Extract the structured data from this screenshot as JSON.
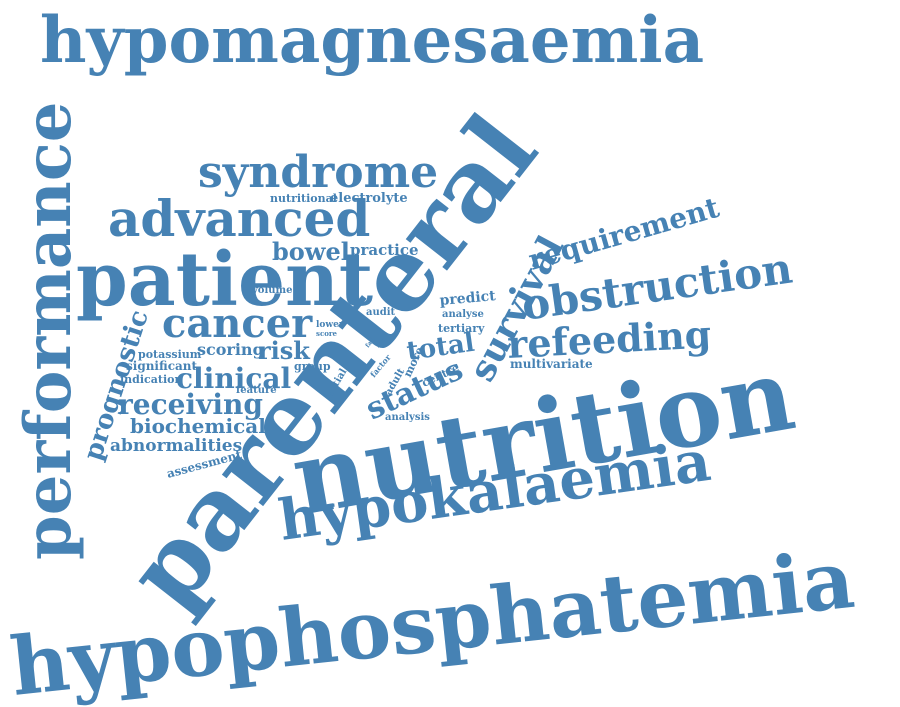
{
  "colors": {
    "word": "#4682b4",
    "background": "#ffffff"
  },
  "words": [
    "hypomagnesaemia",
    "performance",
    "parenteral",
    "nutrition",
    "hypophosphatemia",
    "hypokalaemia",
    "patient",
    "advanced",
    "syndrome",
    "cancer",
    "obstruction",
    "refeeding",
    "requirement",
    "survival",
    "status",
    "prognostic",
    "clinical",
    "receiving",
    "biochemical",
    "abnormalities",
    "total",
    "risk",
    "scoring",
    "bowel",
    "practice",
    "nutritional",
    "electrolyte",
    "predict",
    "multivariate",
    "potassium",
    "significant",
    "indication",
    "assessment",
    "group",
    "feature",
    "tertiary",
    "analyse",
    "centre",
    "analysis",
    "adult",
    "more",
    "initial",
    "audit",
    "volume",
    "lower",
    "score",
    "factor",
    "low",
    "fail"
  ]
}
